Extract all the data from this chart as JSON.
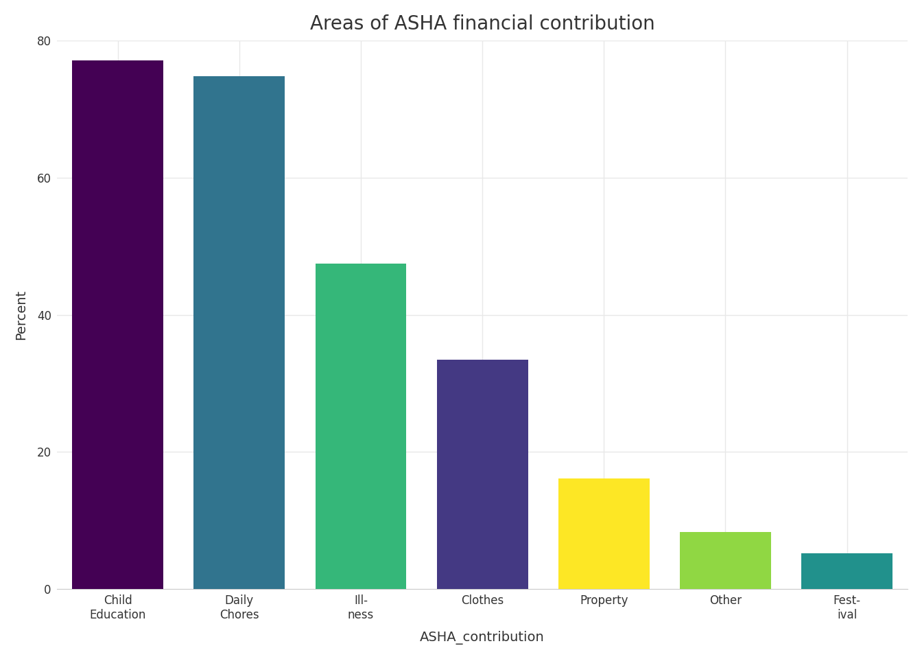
{
  "title": "Areas of ASHA financial contribution",
  "xlabel": "ASHA_contribution",
  "ylabel": "Percent",
  "categories": [
    "Child\nEducation",
    "Daily\nChores",
    "Ill-\nness",
    "Clothes",
    "Property",
    "Other",
    "Fest-\nival"
  ],
  "values": [
    77.1,
    74.8,
    47.5,
    33.5,
    16.1,
    8.3,
    5.2
  ],
  "bar_colors": [
    "#440154",
    "#31748e",
    "#35b779",
    "#443983",
    "#fde725",
    "#90d743",
    "#21918c"
  ],
  "ylim": [
    0,
    80
  ],
  "yticks": [
    0,
    20,
    40,
    60,
    80
  ],
  "background_color": "#ffffff",
  "grid_color": "#e8e8e8",
  "title_fontsize": 20,
  "axis_label_fontsize": 14,
  "tick_fontsize": 12,
  "bar_width": 0.75
}
